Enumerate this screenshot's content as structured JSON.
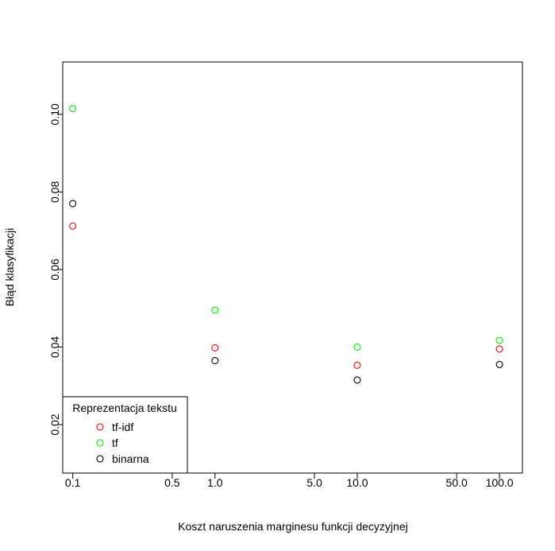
{
  "chart_data": {
    "type": "scatter",
    "title": "",
    "xlabel": "Koszt naruszenia marginesu funkcji decyzyjnej",
    "ylabel": "Błąd klasyfikacji",
    "x_scale": "log",
    "xlim": [
      0.085,
      145
    ],
    "ylim": [
      0.0075,
      0.1135
    ],
    "x_ticks": [
      {
        "value": 0.1,
        "label": "0.1"
      },
      {
        "value": 0.5,
        "label": "0.5"
      },
      {
        "value": 1,
        "label": "1.0"
      },
      {
        "value": 5,
        "label": "5.0"
      },
      {
        "value": 10,
        "label": "10.0"
      },
      {
        "value": 50,
        "label": "50.0"
      },
      {
        "value": 100,
        "label": "100.0"
      }
    ],
    "y_ticks": [
      {
        "value": 0.02,
        "label": "0.02"
      },
      {
        "value": 0.04,
        "label": "0.04"
      },
      {
        "value": 0.06,
        "label": "0.06"
      },
      {
        "value": 0.08,
        "label": "0.08"
      },
      {
        "value": 0.1,
        "label": "0.10"
      }
    ],
    "grid": false,
    "legend": {
      "title": "Reprezentacja tekstu",
      "position": "bottom-left"
    },
    "series": [
      {
        "name": "tf-idf",
        "color": "#ff0000",
        "x": [
          0.1,
          1,
          10,
          100
        ],
        "y": [
          0.0712,
          0.0398,
          0.0353,
          0.0395
        ]
      },
      {
        "name": "tf",
        "color": "#00ee00",
        "x": [
          0.1,
          1,
          10,
          100
        ],
        "y": [
          0.1015,
          0.0495,
          0.04,
          0.0417
        ]
      },
      {
        "name": "binarna",
        "color": "#000000",
        "x": [
          0.1,
          1,
          10,
          100
        ],
        "y": [
          0.077,
          0.0365,
          0.0315,
          0.0355
        ]
      }
    ]
  }
}
